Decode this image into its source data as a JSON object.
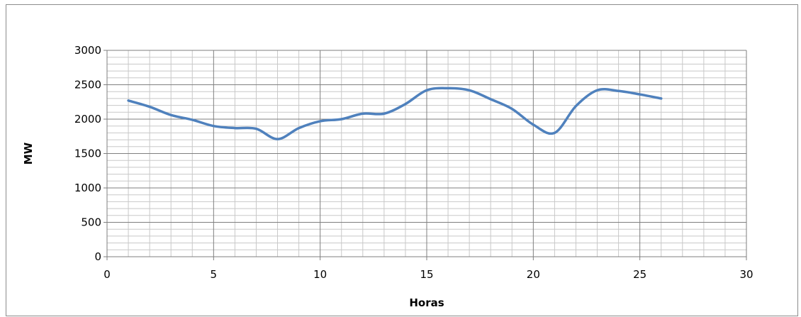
{
  "chart_data": {
    "type": "line",
    "title": "",
    "xlabel": "Horas",
    "ylabel": "MW",
    "xlim": [
      0,
      30
    ],
    "ylim": [
      0,
      3000
    ],
    "x_ticks": [
      "0",
      "5",
      "10",
      "15",
      "20",
      "25",
      "30"
    ],
    "y_ticks": [
      "0",
      "500",
      "1000",
      "1500",
      "2000",
      "2500",
      "3000"
    ],
    "grid": true,
    "legend": "none",
    "line_color": "#4f81bd",
    "series": [
      {
        "x": [
          1,
          2,
          3,
          4,
          5,
          6,
          7,
          8,
          9,
          10,
          11,
          12,
          13,
          14,
          15,
          16,
          17,
          18,
          19,
          20,
          21,
          22,
          23,
          24,
          25,
          26
        ],
        "values": [
          2270,
          2180,
          2060,
          1990,
          1900,
          1870,
          1860,
          1710,
          1870,
          1970,
          2000,
          2080,
          2080,
          2220,
          2420,
          2450,
          2420,
          2290,
          2150,
          1920,
          1800,
          2190,
          2420,
          2410,
          2360,
          2300
        ]
      }
    ]
  }
}
